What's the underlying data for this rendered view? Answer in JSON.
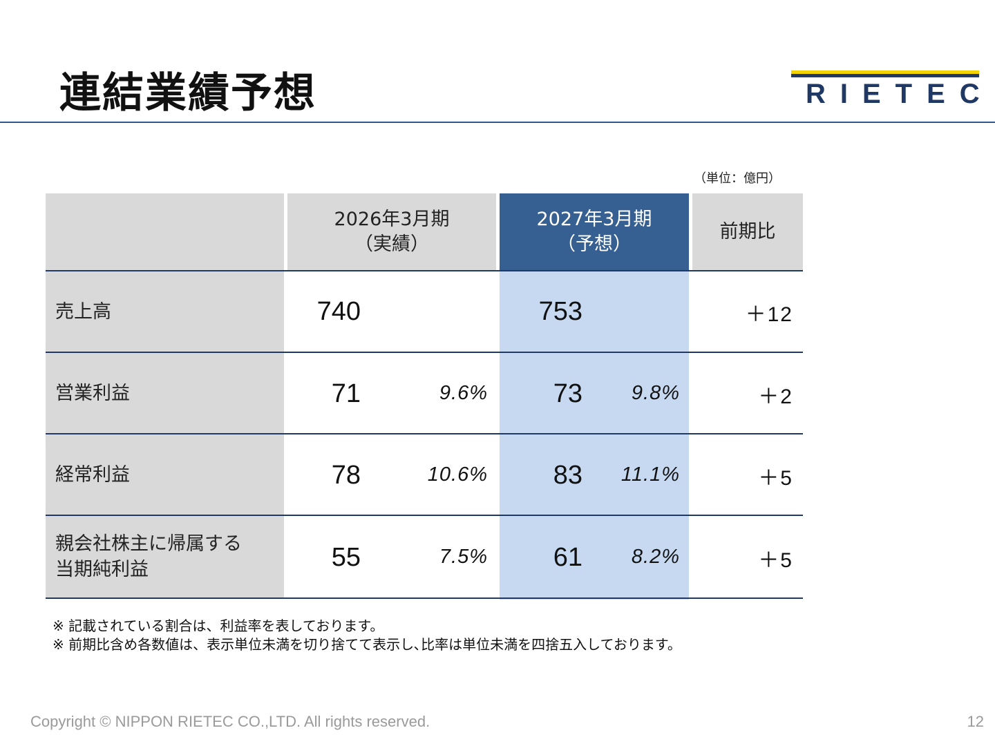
{
  "title": "連結業績予想",
  "logo_text": "RIETEC",
  "unit_note": "（単位：億円）",
  "table": {
    "headers": {
      "col1": {
        "line1": "2026年3月期",
        "line2": "（実績）"
      },
      "col2": {
        "line1": "2027年3月期",
        "line2": "（予想）"
      },
      "col3": "前期比"
    },
    "rows": [
      {
        "label": [
          "売上高"
        ],
        "actual": "740",
        "actual_pct": "",
        "forecast": "753",
        "forecast_pct": "",
        "change": "＋12"
      },
      {
        "label": [
          "営業利益"
        ],
        "actual": "71",
        "actual_pct": "9.6%",
        "forecast": "73",
        "forecast_pct": "9.8%",
        "change": "＋2"
      },
      {
        "label": [
          "経常利益"
        ],
        "actual": "78",
        "actual_pct": "10.6%",
        "forecast": "83",
        "forecast_pct": "11.1%",
        "change": "＋5"
      },
      {
        "label": [
          "親会社株主に帰属する",
          "当期純利益"
        ],
        "actual": "55",
        "actual_pct": "7.5%",
        "forecast": "61",
        "forecast_pct": "8.2%",
        "change": "＋5"
      }
    ]
  },
  "notes": [
    "※ 記載されている割合は、利益率を表しております。",
    "※ 前期比含め各数値は、表示単位未満を切り捨てて表示し､比率は単位未満を四捨五入しております。"
  ],
  "footer": "Copyright © NIPPON RIETEC CO.,LTD. All rights reserved.",
  "page_number": "12",
  "colors": {
    "header_gray": "#d9d9d9",
    "forecast_header": "#376092",
    "forecast_column": "#c6d9f1",
    "rule": "#1f3864",
    "logo_yellow": "#f2d200"
  }
}
